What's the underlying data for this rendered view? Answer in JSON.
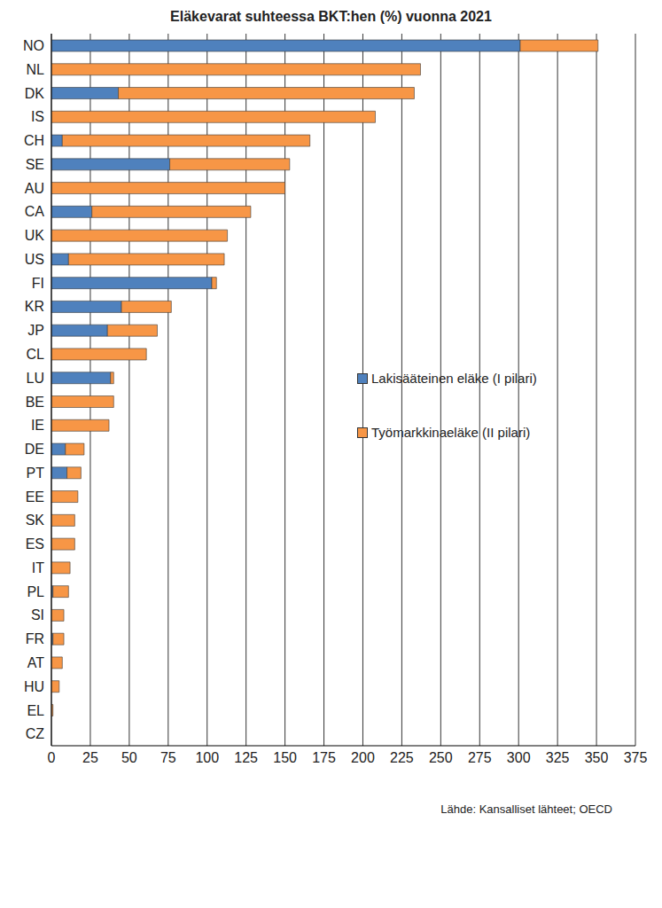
{
  "chart_data": {
    "type": "bar",
    "title": "Eläkevarat suhteessa BKT:hen (%) vuonna 2021",
    "orientation": "horizontal",
    "stacked": true,
    "grid": true,
    "legend": "right",
    "categories": [
      "NO",
      "NL",
      "DK",
      "IS",
      "CH",
      "SE",
      "AU",
      "CA",
      "UK",
      "US",
      "FI",
      "KR",
      "JP",
      "CL",
      "LU",
      "BE",
      "IE",
      "DE",
      "PT",
      "EE",
      "SK",
      "ES",
      "IT",
      "PL",
      "SI",
      "FR",
      "AT",
      "HU",
      "EL",
      "CZ"
    ],
    "series": [
      {
        "name": "Lakisääteinen eläke (I pilari)",
        "color": "#4f81bd",
        "values": [
          301,
          0,
          43,
          0,
          7,
          76,
          0,
          26,
          0,
          11,
          103,
          45,
          36,
          0,
          38,
          0,
          0,
          9,
          10,
          0,
          0,
          0,
          0,
          1,
          0,
          1,
          0,
          0,
          0,
          0
        ]
      },
      {
        "name": "Työmarkkinaeläke (II pilari)",
        "color": "#f79646",
        "values": [
          50,
          237,
          190,
          208,
          159,
          77,
          150,
          102,
          113,
          100,
          3,
          32,
          32,
          61,
          2,
          40,
          37,
          12,
          9,
          17,
          15,
          15,
          12,
          10,
          8,
          7,
          7,
          5,
          1,
          0
        ]
      }
    ],
    "xlim": [
      0,
      375
    ],
    "xticks": [
      0,
      25,
      50,
      75,
      100,
      125,
      150,
      175,
      200,
      225,
      250,
      275,
      300,
      325,
      350,
      375
    ],
    "annotations": [
      "Lähde: Kansalliset lähteet; OECD"
    ]
  }
}
